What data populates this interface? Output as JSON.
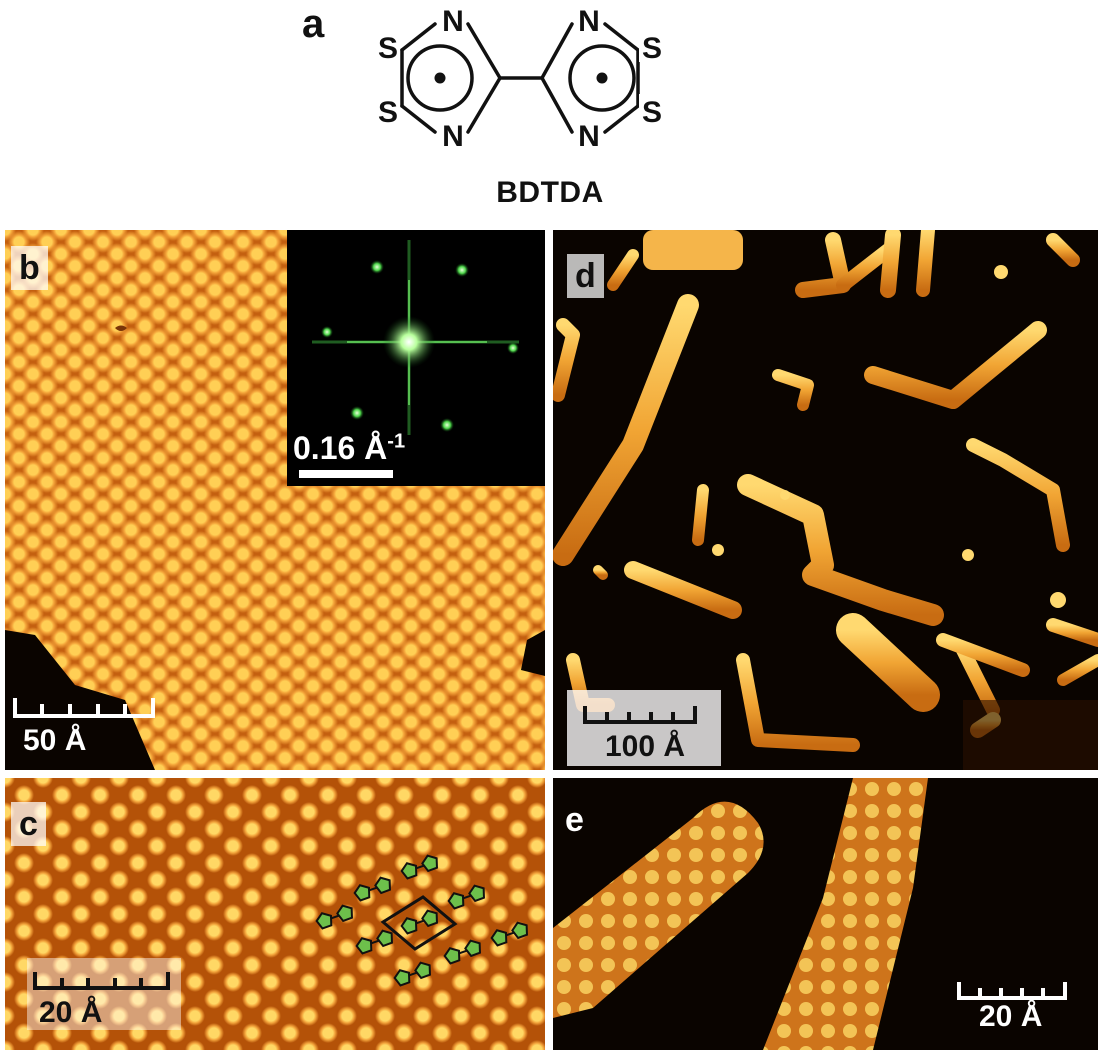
{
  "figure": {
    "panel_labels": {
      "a": "a",
      "b": "b",
      "c": "c",
      "d": "d",
      "e": "e"
    },
    "molecule": {
      "name": "BDTDA",
      "atoms": {
        "sulfur": "S",
        "nitrogen": "N"
      }
    },
    "scale_bars": {
      "b": "50 Å",
      "b_inset_base": "0.16 Å",
      "b_inset_sup": "-1",
      "c": "20 Å",
      "d": "100 Å",
      "e": "20 Å"
    },
    "colors": {
      "stm_dark": "#0a0400",
      "stm_mid": "#c46010",
      "stm_bright": "#ffcf55",
      "fft_green": "#7cff70",
      "molecule_overlay": "#6dc04b"
    }
  }
}
